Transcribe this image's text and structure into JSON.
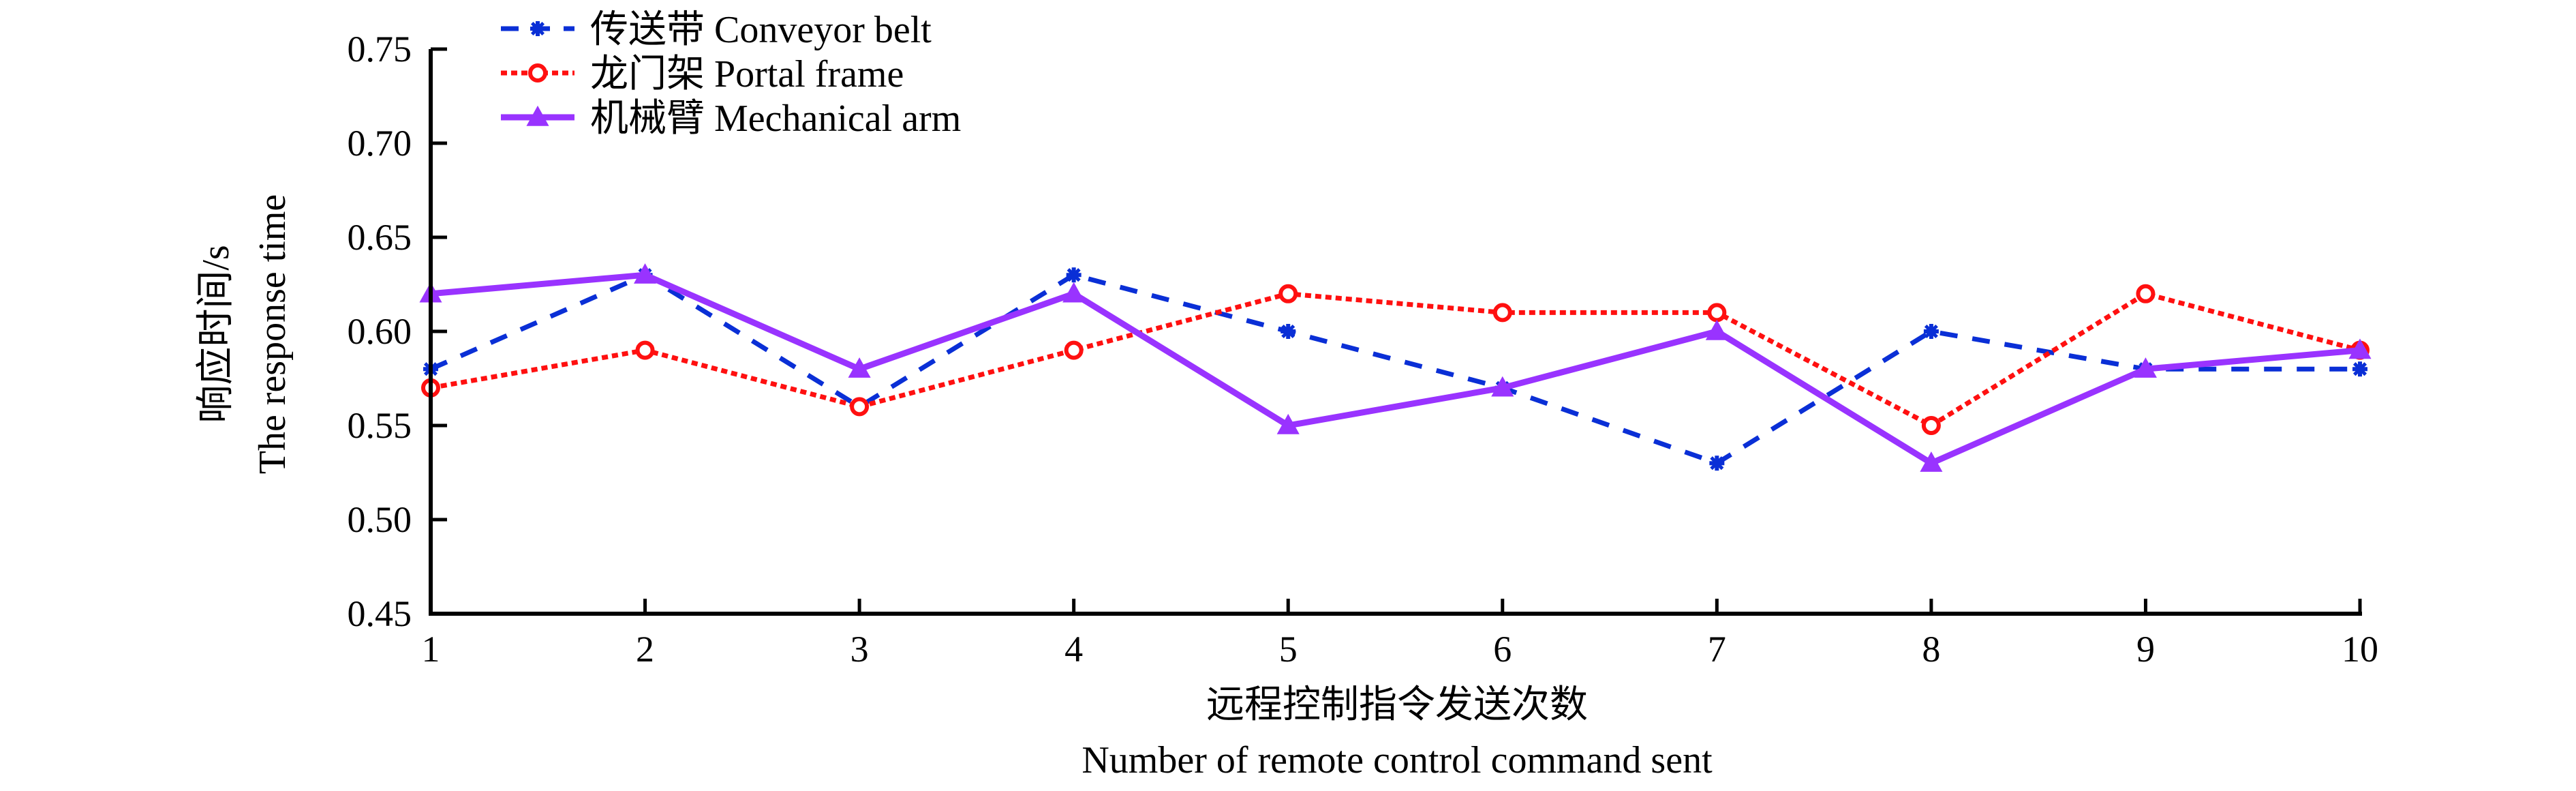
{
  "chart_data": {
    "type": "line",
    "title": "",
    "xlabel": "远程控制指令发送次数",
    "xlabel_en": "Number of remote control command sent",
    "ylabel": "响应时间/s",
    "ylabel_en": "The response time",
    "x": [
      1,
      2,
      3,
      4,
      5,
      6,
      7,
      8,
      9,
      10
    ],
    "xlim": [
      1,
      10
    ],
    "ylim": [
      0.45,
      0.75
    ],
    "x_ticks": [
      "1",
      "2",
      "3",
      "4",
      "5",
      "6",
      "7",
      "8",
      "9",
      "10"
    ],
    "y_ticks": [
      "0.45",
      "0.50",
      "0.55",
      "0.60",
      "0.65",
      "0.70",
      "0.75"
    ],
    "y_tick_values": [
      0.45,
      0.5,
      0.55,
      0.6,
      0.65,
      0.7,
      0.75
    ],
    "grid": false,
    "legend_position": "top-left",
    "series": [
      {
        "name": "传送带 Conveyor belt",
        "color": "#0a2fd6",
        "line_style": "dashed",
        "marker": "asterisk",
        "values": [
          0.58,
          0.63,
          0.56,
          0.63,
          0.6,
          0.57,
          0.53,
          0.6,
          0.58,
          0.58
        ]
      },
      {
        "name": "龙门架 Portal frame",
        "color": "#ff1010",
        "line_style": "dotted",
        "marker": "circle",
        "values": [
          0.57,
          0.59,
          0.56,
          0.59,
          0.62,
          0.61,
          0.61,
          0.55,
          0.62,
          0.59
        ]
      },
      {
        "name": "机械臂 Mechanical arm",
        "color": "#9933ff",
        "line_style": "solid",
        "marker": "triangle",
        "values": [
          0.62,
          0.63,
          0.58,
          0.62,
          0.55,
          0.57,
          0.6,
          0.53,
          0.58,
          0.59
        ]
      }
    ]
  }
}
